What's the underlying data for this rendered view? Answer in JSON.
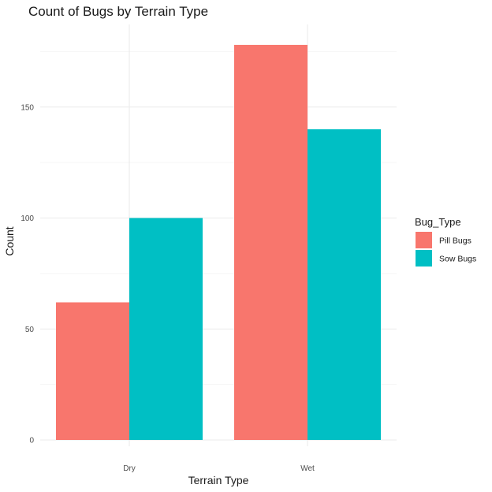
{
  "chart_data": {
    "type": "bar",
    "title": "Count of Bugs by Terrain Type",
    "xlabel": "Terrain Type",
    "ylabel": "Count",
    "categories": [
      "Dry",
      "Wet"
    ],
    "series": [
      {
        "name": "Pill Bugs",
        "values": [
          62,
          178
        ],
        "color": "#F8766D"
      },
      {
        "name": "Sow Bugs",
        "values": [
          100,
          140
        ],
        "color": "#00BFC4"
      }
    ],
    "ylim": [
      0,
      187
    ],
    "yticks": [
      0,
      50,
      100,
      150
    ],
    "grid": true,
    "legend": {
      "title": "Bug_Type",
      "placement": "right"
    }
  }
}
